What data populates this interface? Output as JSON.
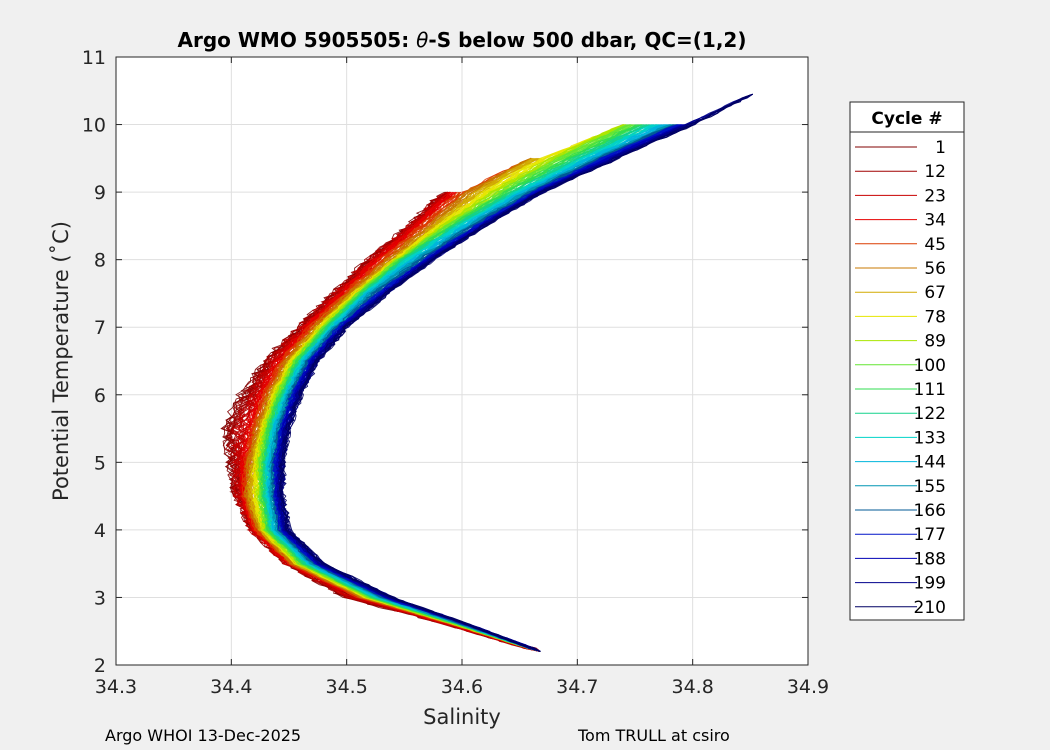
{
  "chart_data": {
    "type": "line",
    "title": "Argo WMO 5905505: θ-S below 500 dbar,  QC=(1,2)",
    "title_parts": {
      "prefix": "Argo WMO 5905505: ",
      "theta": "θ",
      "suffix": "-S below 500 dbar,  QC=(1,2)"
    },
    "xlabel": "Salinity",
    "ylabel": "Potential Temperature (˚C)",
    "xlim": [
      34.3,
      34.9
    ],
    "ylim": [
      2,
      11
    ],
    "xticks": [
      "34.3",
      "34.4",
      "34.5",
      "34.6",
      "34.7",
      "34.8",
      "34.9"
    ],
    "yticks": [
      "2",
      "3",
      "4",
      "5",
      "6",
      "7",
      "8",
      "9",
      "10",
      "11"
    ],
    "grid": true,
    "legend": {
      "title": "Cycle #",
      "placement": "outside-right",
      "entries": [
        {
          "label": "1",
          "color": "#800000"
        },
        {
          "label": "12",
          "color": "#a00000"
        },
        {
          "label": "23",
          "color": "#c80000"
        },
        {
          "label": "34",
          "color": "#e60000"
        },
        {
          "label": "45",
          "color": "#dc3c00"
        },
        {
          "label": "56",
          "color": "#c87800"
        },
        {
          "label": "67",
          "color": "#d2aa00"
        },
        {
          "label": "78",
          "color": "#e6e600"
        },
        {
          "label": "89",
          "color": "#aae600"
        },
        {
          "label": "100",
          "color": "#64e632"
        },
        {
          "label": "111",
          "color": "#32dc50"
        },
        {
          "label": "122",
          "color": "#14d28c"
        },
        {
          "label": "133",
          "color": "#00d2c8"
        },
        {
          "label": "144",
          "color": "#00b4dc"
        },
        {
          "label": "155",
          "color": "#0096b4"
        },
        {
          "label": "166",
          "color": "#005a96"
        },
        {
          "label": "177",
          "color": "#0014c8"
        },
        {
          "label": "188",
          "color": "#0000b4"
        },
        {
          "label": "199",
          "color": "#00008c"
        },
        {
          "label": "210",
          "color": "#000064"
        }
      ]
    },
    "series_profile": {
      "description": "theta-S profiles, one per cycle",
      "theta": [
        2.2,
        2.6,
        3.0,
        3.5,
        4.0,
        4.5,
        5.0,
        5.5,
        6.0,
        6.5,
        7.0,
        7.5,
        8.0,
        8.5,
        9.0,
        9.5,
        10.0,
        10.45
      ],
      "salinity_envelope": [
        {
          "cycle": "1",
          "s": [
            34.668,
            34.59,
            34.5,
            34.45,
            34.42,
            34.405,
            34.4,
            34.395,
            34.41,
            34.43,
            34.46,
            34.49,
            34.52,
            34.555,
            34.585,
            null,
            null,
            null
          ]
        },
        {
          "cycle": "23",
          "s": [
            34.668,
            34.59,
            34.51,
            34.45,
            34.42,
            34.41,
            34.41,
            34.415,
            34.425,
            34.44,
            34.465,
            34.495,
            34.525,
            34.56,
            34.59,
            null,
            null,
            null
          ]
        },
        {
          "cycle": "56",
          "s": [
            34.668,
            34.595,
            34.515,
            34.455,
            34.425,
            34.415,
            34.418,
            34.425,
            34.435,
            34.45,
            34.475,
            34.505,
            34.54,
            34.575,
            34.61,
            34.66,
            null,
            null
          ]
        },
        {
          "cycle": "89",
          "s": [
            34.668,
            34.595,
            34.52,
            34.46,
            34.43,
            34.425,
            34.425,
            34.43,
            34.44,
            34.455,
            34.48,
            34.51,
            34.545,
            34.585,
            34.63,
            34.68,
            34.74,
            null
          ]
        },
        {
          "cycle": "122",
          "s": [
            34.668,
            34.6,
            34.525,
            34.465,
            34.435,
            34.43,
            34.43,
            34.435,
            34.445,
            34.46,
            34.485,
            34.515,
            34.55,
            34.595,
            34.645,
            34.7,
            34.76,
            null
          ]
        },
        {
          "cycle": "155",
          "s": [
            34.668,
            34.6,
            34.53,
            34.47,
            34.44,
            34.435,
            34.435,
            34.44,
            34.45,
            34.465,
            34.49,
            34.52,
            34.56,
            34.605,
            34.655,
            34.715,
            34.78,
            null
          ]
        },
        {
          "cycle": "188",
          "s": [
            34.668,
            34.605,
            34.535,
            34.475,
            34.445,
            34.44,
            34.44,
            34.445,
            34.455,
            34.47,
            34.495,
            34.53,
            34.57,
            34.615,
            34.665,
            34.725,
            34.79,
            null
          ]
        },
        {
          "cycle": "210",
          "s": [
            34.668,
            34.605,
            34.54,
            34.48,
            34.45,
            34.445,
            34.445,
            34.45,
            34.46,
            34.475,
            34.5,
            34.535,
            34.575,
            34.62,
            34.67,
            34.735,
            34.8,
            34.852
          ]
        }
      ]
    }
  },
  "footer": {
    "left": "Argo WHOI 13-Dec-2025",
    "right": "Tom TRULL at csiro"
  }
}
